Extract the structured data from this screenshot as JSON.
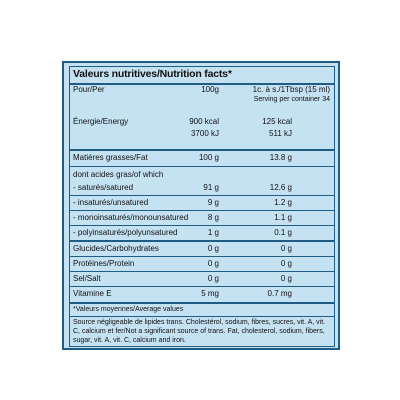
{
  "title": "Valeurs nutritives/Nutrition facts*",
  "per_label": "Pour/Per",
  "serving_100g": "100g",
  "serving_tbsp": "1c. à s./1Tbsp (15 ml)",
  "servings_per_container": "Serving per container 34",
  "energy": {
    "label": "Énergie/Energy",
    "kcal_100g": "900 kcal",
    "kcal_tbsp": "125 kcal",
    "kj_100g": "3700 kJ",
    "kj_tbsp": "511 kJ"
  },
  "rows": [
    {
      "label": "Matières grasses/Fat",
      "v1": "100 g",
      "v2": "13.8 g"
    },
    {
      "label": "dont acides gras/of which",
      "v1": "",
      "v2": ""
    },
    {
      "label": "- saturés/satured",
      "v1": "91 g",
      "v2": "12.6 g"
    },
    {
      "label": "- insaturés/unsatured",
      "v1": "9 g",
      "v2": "1.2 g"
    },
    {
      "label": "- monoinsaturés/monounsatured",
      "v1": "8 g",
      "v2": "1.1 g"
    },
    {
      "label": "- polyinsaturés/polyunsatured",
      "v1": "1 g",
      "v2": "0.1 g"
    },
    {
      "label": "Glucides/Carbohydrates",
      "v1": "0 g",
      "v2": "0 g"
    },
    {
      "label": "Protéines/Protein",
      "v1": "0 g",
      "v2": "0 g"
    },
    {
      "label": "Sel/Salt",
      "v1": "0 g",
      "v2": "0 g"
    },
    {
      "label": "Vitamine E",
      "v1": "5 mg",
      "v2": "0.7 mg"
    }
  ],
  "footnote_avg": "*Valeurs moyennes/Average values",
  "footnote_source": "Source négligeable de lipides trans. Cholestérol, sodium, fibres, sucres, vit. A, vit. C, calcium et fer/Not a significant source of trans. Fat, cholesterol, sodium, fibers, sugar, vit. A, vit. C, calcium and iron."
}
